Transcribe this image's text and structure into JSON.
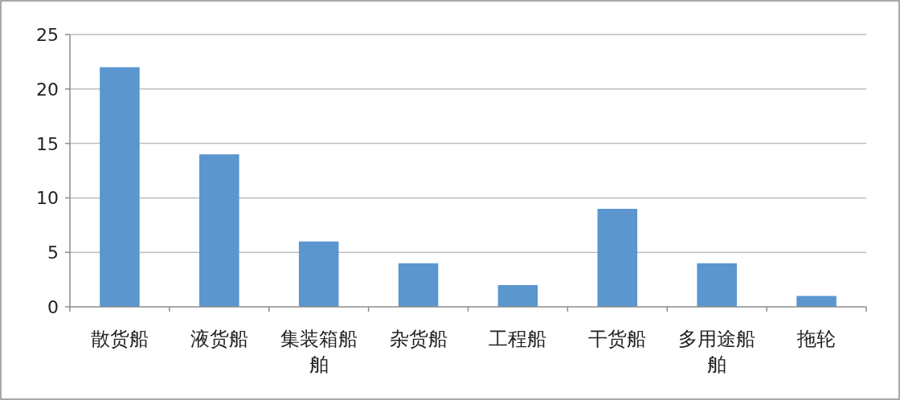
{
  "chart_data": {
    "type": "bar",
    "categories": [
      "散货船",
      "液货船",
      "集装箱船舶",
      "杂货船",
      "工程船",
      "干货船",
      "多用途船舶",
      "拖轮"
    ],
    "values": [
      22,
      14,
      6,
      4,
      2,
      9,
      4,
      1
    ],
    "color": "#5b96cf",
    "ylim": [
      0,
      25
    ],
    "yticks": [
      0,
      5,
      10,
      15,
      20,
      25
    ],
    "grid": "y"
  }
}
